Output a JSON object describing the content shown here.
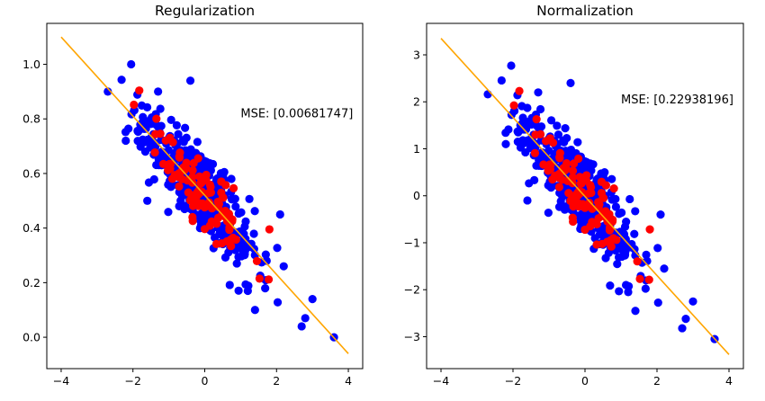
{
  "chart_data": [
    {
      "type": "scatter",
      "title": "Regularization",
      "xlim": [
        -4.4,
        4.4
      ],
      "ylim": [
        -0.115,
        1.15
      ],
      "xticks": [
        -4,
        -2,
        0,
        2,
        4
      ],
      "yticks": [
        0.0,
        0.2,
        0.4,
        0.6,
        0.8,
        1.0
      ],
      "xtick_labels": [
        "−4",
        "−2",
        "0",
        "2",
        "4"
      ],
      "ytick_labels": [
        "0.0",
        "0.2",
        "0.4",
        "0.6",
        "0.8",
        "1.0"
      ],
      "fit_line": {
        "color": "#ffa500",
        "points": [
          [
            -4.0,
            1.1
          ],
          [
            4.0,
            -0.06
          ]
        ]
      },
      "annotation": {
        "text": "MSE: [0.00681747]",
        "x": 1.0,
        "y": 0.805
      },
      "train_color": "#0000ff",
      "test_color": "#ff0000",
      "scatter": {
        "seed": 17,
        "n_train": 400,
        "n_test": 100,
        "x_mean": -0.25,
        "x_sd": 0.85,
        "intercept": 0.52,
        "slope": -0.145,
        "noise": 0.072
      },
      "fixed_points": [
        [
          -2.05,
          1.0
        ],
        [
          -0.4,
          0.94
        ],
        [
          -1.3,
          0.9
        ],
        [
          -2.7,
          0.9
        ],
        [
          3.6,
          0.0
        ],
        [
          2.8,
          0.07
        ],
        [
          2.7,
          0.04
        ],
        [
          1.2,
          0.17
        ],
        [
          1.4,
          0.1
        ],
        [
          2.1,
          0.45
        ],
        [
          2.2,
          0.26
        ],
        [
          3.0,
          0.14
        ],
        [
          -1.6,
          0.5
        ],
        [
          -2.2,
          0.72
        ]
      ]
    },
    {
      "type": "scatter",
      "title": "Normalization",
      "xlim": [
        -4.4,
        4.4
      ],
      "ylim": [
        -3.68,
        3.67
      ],
      "xticks": [
        -4,
        -2,
        0,
        2,
        4
      ],
      "yticks": [
        -3,
        -2,
        -1,
        0,
        1,
        2,
        3
      ],
      "xtick_labels": [
        "−4",
        "−2",
        "0",
        "2",
        "4"
      ],
      "ytick_labels": [
        "−3",
        "−2",
        "−1",
        "0",
        "1",
        "2",
        "3"
      ],
      "fit_line": {
        "color": "#ffa500",
        "points": [
          [
            -4.0,
            3.35
          ],
          [
            4.0,
            -3.38
          ]
        ]
      },
      "annotation": {
        "text": "MSE: [0.22938196]",
        "x": 1.0,
        "y": 1.97
      },
      "train_color": "#0000ff",
      "test_color": "#ff0000",
      "scatter": {
        "seed": 17,
        "n_train": 400,
        "n_test": 100,
        "x_mean": -0.25,
        "x_sd": 0.85,
        "intercept": 0.0,
        "slope": -0.84,
        "noise": 0.42
      },
      "fixed_points": [
        [
          -2.05,
          2.77
        ],
        [
          -0.4,
          2.4
        ],
        [
          -1.3,
          2.2
        ],
        [
          -2.7,
          2.16
        ],
        [
          3.6,
          -3.05
        ],
        [
          2.8,
          -2.62
        ],
        [
          2.7,
          -2.82
        ],
        [
          1.2,
          -2.05
        ],
        [
          1.4,
          -2.45
        ],
        [
          2.1,
          -0.4
        ],
        [
          2.2,
          -1.55
        ],
        [
          3.0,
          -2.25
        ],
        [
          -1.6,
          -0.1
        ],
        [
          -2.2,
          1.1
        ]
      ]
    }
  ]
}
